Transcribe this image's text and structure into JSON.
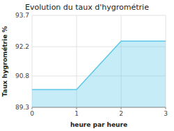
{
  "chart_data": {
    "type": "area",
    "title": "Evolution du taux d'hygrométrie",
    "xlabel": "heure par heure",
    "ylabel": "Taux hygrométrie %",
    "x": [
      0,
      1,
      2,
      3
    ],
    "values": [
      90.15,
      90.15,
      92.47,
      92.47
    ],
    "color": "#5bc8e8",
    "xlim": [
      0,
      3
    ],
    "ylim": [
      89.3,
      93.7
    ],
    "xticks": [
      0,
      1,
      2,
      3
    ],
    "yticks": [
      89.3,
      90.8,
      92.2,
      93.7
    ],
    "grid": true
  }
}
